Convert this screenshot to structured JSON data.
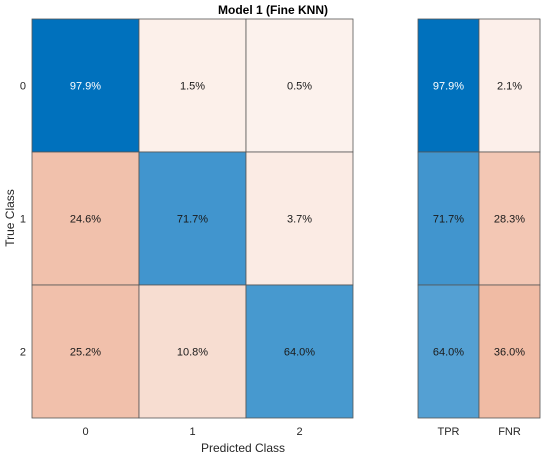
{
  "chart_data": [
    {
      "type": "heatmap",
      "title": "Model 1 (Fine KNN)",
      "xlabel": "Predicted Class",
      "ylabel": "True Class",
      "x_categories": [
        "0",
        "1",
        "2"
      ],
      "y_categories": [
        "0",
        "1",
        "2"
      ],
      "values": [
        [
          97.9,
          1.5,
          0.5
        ],
        [
          24.6,
          71.7,
          3.7
        ],
        [
          25.2,
          10.8,
          64.0
        ]
      ],
      "labels": [
        [
          "97.9%",
          "1.5%",
          "0.5%"
        ],
        [
          "24.6%",
          "71.7%",
          "3.7%"
        ],
        [
          "25.2%",
          "10.8%",
          "64.0%"
        ]
      ],
      "diagonal_color": "#0071bd",
      "offdiagonal_color": "#d95319"
    },
    {
      "type": "heatmap",
      "x_categories": [
        "TPR",
        "FNR"
      ],
      "y_categories": [
        "0",
        "1",
        "2"
      ],
      "values": [
        [
          97.9,
          2.1
        ],
        [
          71.7,
          28.3
        ],
        [
          64.0,
          36.0
        ]
      ],
      "labels": [
        [
          "97.9%",
          "2.1%"
        ],
        [
          "71.7%",
          "28.3%"
        ],
        [
          "64.0%",
          "36.0%"
        ]
      ],
      "positive_color": "#0071bd",
      "negative_color": "#d95319"
    }
  ]
}
